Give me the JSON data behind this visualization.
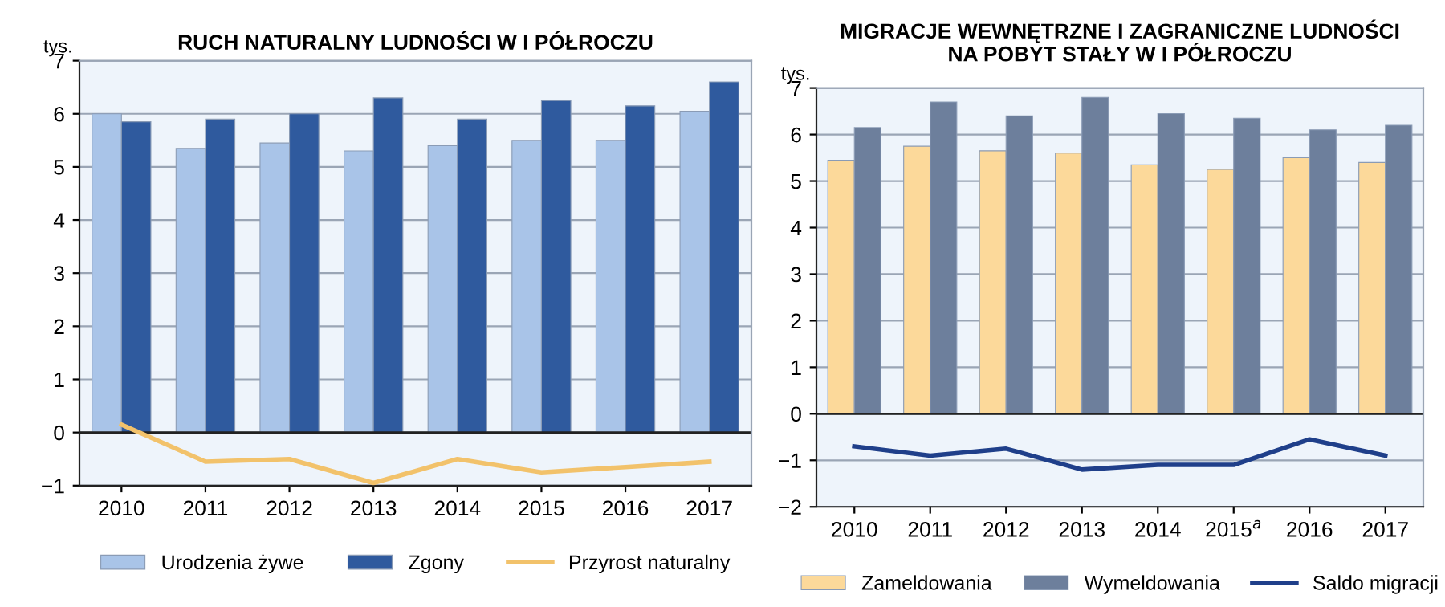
{
  "chart_data": [
    {
      "type": "bar",
      "title": "RUCH NATURALNY LUDNOŚCI W I PÓŁROCZU",
      "ylabel": "tys.",
      "categories": [
        "2010",
        "2011",
        "2012",
        "2013",
        "2014",
        "2015",
        "2016",
        "2017"
      ],
      "series": [
        {
          "name": "Urodzenia żywe",
          "color": "#a9c4e8",
          "values": [
            6.0,
            5.35,
            5.45,
            5.3,
            5.4,
            5.5,
            5.5,
            6.05
          ]
        },
        {
          "name": "Zgony",
          "color": "#2f5a9e",
          "values": [
            5.85,
            5.9,
            6.0,
            6.3,
            5.9,
            6.25,
            6.15,
            6.6
          ]
        },
        {
          "name": "Przyrost naturalny",
          "type": "line",
          "color": "#f2c26b",
          "values": [
            0.15,
            -0.55,
            -0.5,
            -0.95,
            -0.5,
            -0.75,
            -0.65,
            -0.55
          ]
        }
      ],
      "ylim": [
        -1,
        7
      ],
      "yticks": [
        -1,
        0,
        1,
        2,
        3,
        4,
        5,
        6,
        7
      ],
      "grid": "y",
      "legend": "bottom",
      "marker": "none",
      "line_style": "solid"
    },
    {
      "type": "bar",
      "title": "MIGRACJE WEWNĘTRZNE I ZAGRANICZNE LUDNOŚCI\nNA POBYT STAŁY W I PÓŁROCZU",
      "ylabel": "tys.",
      "categories": [
        "2010",
        "2011",
        "2012",
        "2013",
        "2014",
        "2015$^{a}$",
        "2016",
        "2017"
      ],
      "series": [
        {
          "name": "Zameldowania",
          "color": "#fcd99a",
          "values": [
            5.45,
            5.75,
            5.65,
            5.6,
            5.35,
            5.25,
            5.5,
            5.4
          ]
        },
        {
          "name": "Wymeldowania",
          "color": "#6d7f9c",
          "values": [
            6.15,
            6.7,
            6.4,
            6.8,
            6.45,
            6.35,
            6.1,
            6.2
          ]
        },
        {
          "name": "Saldo migracji",
          "type": "line",
          "color": "#1f3f8a",
          "values": [
            -0.7,
            -0.9,
            -0.75,
            -1.2,
            -1.1,
            -1.1,
            -0.55,
            -0.9
          ]
        }
      ],
      "ylim": [
        -2,
        7
      ],
      "yticks": [
        -2,
        -1,
        0,
        1,
        2,
        3,
        4,
        5,
        6,
        7
      ],
      "grid": "y",
      "legend": "bottom",
      "marker": "none",
      "line_style": "solid"
    }
  ]
}
